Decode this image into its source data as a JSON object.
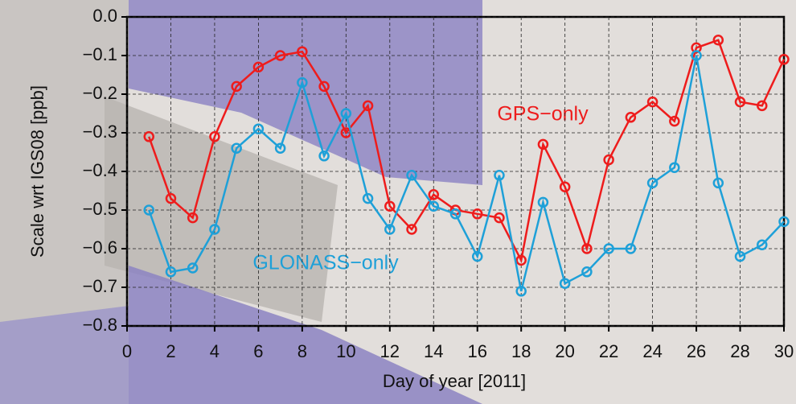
{
  "chart_data": {
    "type": "line",
    "xlabel": "Day of year [2011]",
    "ylabel": "Scale wrt IGS08 [ppb]",
    "annotations": [
      "GPS−only",
      "GLONASS−only"
    ],
    "x": [
      1,
      2,
      3,
      4,
      5,
      6,
      7,
      8,
      9,
      10,
      11,
      12,
      13,
      14,
      15,
      16,
      17,
      18,
      19,
      20,
      21,
      22,
      23,
      24,
      25,
      26,
      27,
      28,
      29,
      30
    ],
    "series": [
      {
        "name": "GPS−only",
        "color": "#ee1c1c",
        "values": [
          -0.31,
          -0.47,
          -0.52,
          -0.31,
          -0.18,
          -0.13,
          -0.1,
          -0.09,
          -0.18,
          -0.3,
          -0.23,
          -0.49,
          -0.55,
          -0.46,
          -0.5,
          -0.51,
          -0.52,
          -0.63,
          -0.33,
          -0.44,
          -0.6,
          -0.37,
          -0.26,
          -0.22,
          -0.27,
          -0.08,
          -0.06,
          -0.22,
          -0.23,
          -0.11
        ]
      },
      {
        "name": "GLONASS−only",
        "color": "#1ea0d8",
        "values": [
          -0.5,
          -0.66,
          -0.65,
          -0.55,
          -0.34,
          -0.29,
          -0.34,
          -0.17,
          -0.36,
          -0.25,
          -0.47,
          -0.55,
          -0.41,
          -0.49,
          -0.51,
          -0.62,
          -0.41,
          -0.71,
          -0.48,
          -0.69,
          -0.66,
          -0.6,
          -0.6,
          -0.43,
          -0.39,
          -0.1,
          -0.43,
          -0.62,
          -0.59,
          -0.53
        ]
      }
    ],
    "xlim": [
      0,
      30
    ],
    "ylim": [
      -0.8,
      0
    ],
    "xticks": [
      0,
      2,
      4,
      6,
      8,
      10,
      12,
      14,
      16,
      18,
      20,
      22,
      24,
      26,
      28,
      30
    ],
    "yticks": [
      {
        "value": -0.8,
        "label": "−0.8"
      },
      {
        "value": -0.7,
        "label": "−0.7"
      },
      {
        "value": -0.6,
        "label": "−0.6"
      },
      {
        "value": -0.5,
        "label": "−0.5"
      },
      {
        "value": -0.4,
        "label": "−0.4"
      },
      {
        "value": -0.3,
        "label": "−0.3"
      },
      {
        "value": -0.2,
        "label": "−0.2"
      },
      {
        "value": -0.1,
        "label": "−0.1"
      },
      {
        "value": 0,
        "label": "0.0"
      }
    ],
    "grid": true
  }
}
